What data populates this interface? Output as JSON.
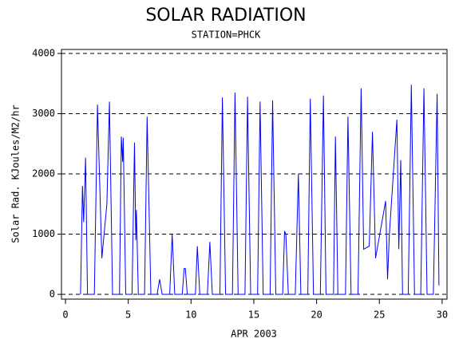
{
  "chart_data": {
    "type": "line",
    "title": "SOLAR RADIATION",
    "subtitle": "STATION=PHCK",
    "x_label": "APR 2003",
    "y_label": "Solar Rad. KJoules/M2/hr",
    "xlim": [
      -0.32,
      30.39
    ],
    "ylim": [
      -79,
      4066
    ],
    "xticks": [
      0,
      5,
      10,
      15,
      20,
      25,
      30
    ],
    "yticks": [
      0,
      1000,
      2000,
      3000,
      4000
    ],
    "grid": true,
    "x": [
      1.2,
      1.35,
      1.45,
      1.6,
      1.75,
      2.3,
      2.55,
      2.9,
      3.3,
      3.5,
      3.75,
      4.3,
      4.45,
      4.55,
      4.6,
      4.8,
      5.3,
      5.5,
      5.6,
      5.65,
      5.8,
      6.3,
      6.5,
      6.8,
      7.3,
      7.5,
      7.7,
      8.3,
      8.5,
      8.7,
      9.3,
      9.45,
      9.55,
      9.7,
      10.35,
      10.5,
      10.7,
      11.3,
      11.5,
      11.7,
      12.3,
      12.5,
      12.75,
      13.3,
      13.5,
      13.75,
      14.3,
      14.5,
      14.75,
      15.3,
      15.5,
      15.75,
      16.3,
      16.5,
      16.75,
      17.3,
      17.45,
      17.55,
      17.75,
      18.3,
      18.55,
      18.75,
      19.3,
      19.5,
      19.75,
      20.3,
      20.55,
      20.75,
      21.35,
      21.5,
      21.7,
      22.3,
      22.5,
      22.75,
      23.3,
      23.55,
      23.75,
      24.2,
      24.45,
      24.7,
      25.5,
      25.65,
      25.8,
      26.4,
      26.55,
      26.7,
      26.85,
      27.3,
      27.55,
      27.8,
      28.3,
      28.55,
      28.8,
      29.3,
      29.6,
      29.75
    ],
    "series": [
      {
        "color": "#0000ff",
        "values": [
          0,
          1800,
          1200,
          2270,
          0,
          0,
          3150,
          600,
          1500,
          3200,
          0,
          0,
          2620,
          2200,
          2600,
          0,
          0,
          2520,
          900,
          1400,
          0,
          0,
          2950,
          0,
          0,
          250,
          0,
          0,
          1000,
          0,
          0,
          430,
          430,
          0,
          0,
          800,
          0,
          0,
          870,
          0,
          0,
          3270,
          0,
          0,
          3350,
          0,
          0,
          3280,
          0,
          0,
          3200,
          0,
          0,
          3220,
          0,
          0,
          1050,
          1000,
          0,
          0,
          2000,
          0,
          0,
          3250,
          0,
          0,
          3300,
          0,
          0,
          2620,
          0,
          0,
          2950,
          0,
          0,
          3420,
          750,
          800,
          2700,
          600,
          1550,
          250,
          1000,
          2900,
          750,
          2230,
          0,
          0,
          3480,
          0,
          0,
          3420,
          0,
          0,
          3330,
          150
        ]
      }
    ]
  }
}
